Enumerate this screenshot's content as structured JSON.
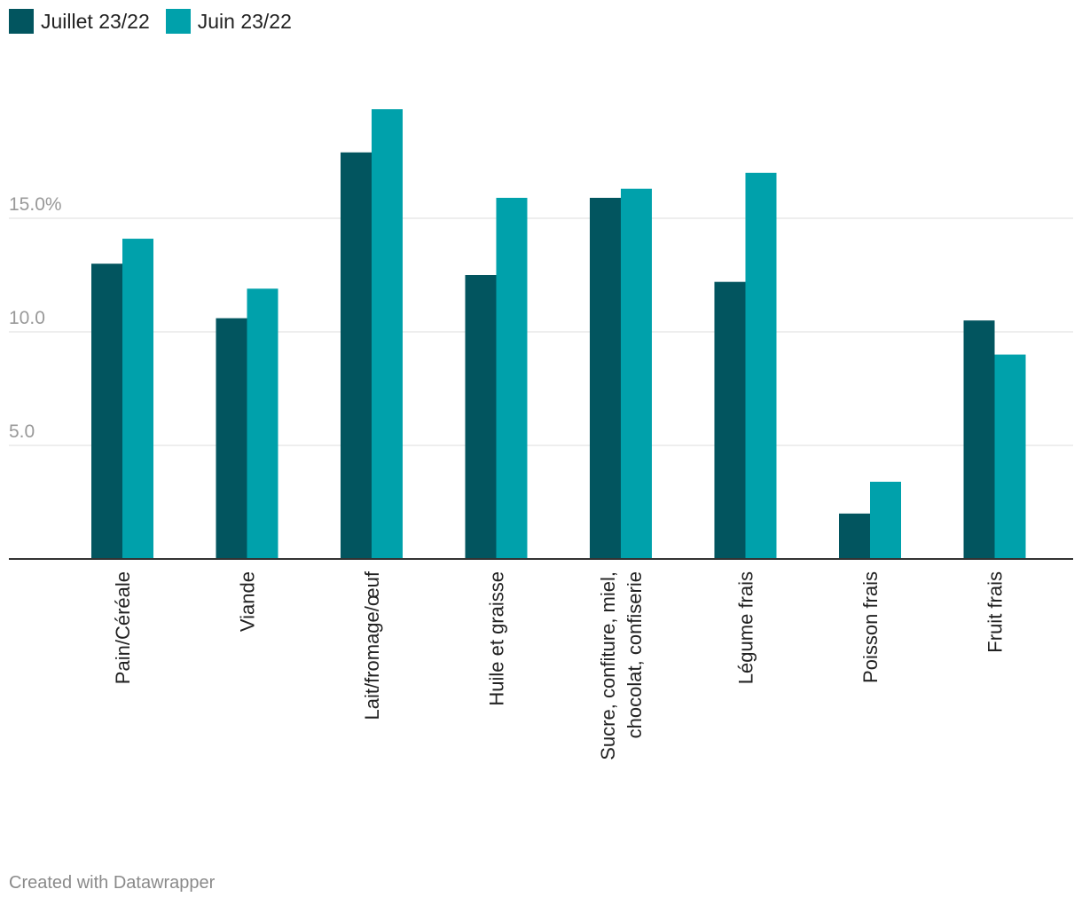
{
  "legend": [
    {
      "label": "Juillet 23/22",
      "color": "#02555f"
    },
    {
      "label": "Juin 23/22",
      "color": "#00a1ab"
    }
  ],
  "footer": "Created with Datawrapper",
  "chart_data": {
    "type": "bar",
    "categories": [
      [
        "Pain/Céréale"
      ],
      [
        "Viande"
      ],
      [
        "Lait/fromage/œuf"
      ],
      [
        "Huile et graisse"
      ],
      [
        "Sucre, confiture, miel,",
        "chocolat, confiserie"
      ],
      [
        "Légume frais"
      ],
      [
        "Poisson frais"
      ],
      [
        "Fruit frais"
      ]
    ],
    "series": [
      {
        "name": "Juillet 23/22",
        "color": "#02555f",
        "values": [
          13.0,
          10.6,
          17.9,
          12.5,
          15.9,
          12.2,
          2.0,
          10.5
        ]
      },
      {
        "name": "Juin 23/22",
        "color": "#00a1ab",
        "values": [
          14.1,
          11.9,
          19.8,
          15.9,
          16.3,
          17.0,
          3.4,
          9.0
        ]
      }
    ],
    "yticks": [
      {
        "value": 5,
        "label": "5.0"
      },
      {
        "value": 10,
        "label": "10.0"
      },
      {
        "value": 15,
        "label": "15.0%"
      }
    ],
    "ylim": [
      0,
      20
    ],
    "grid": true,
    "legend_position": "top-left"
  }
}
